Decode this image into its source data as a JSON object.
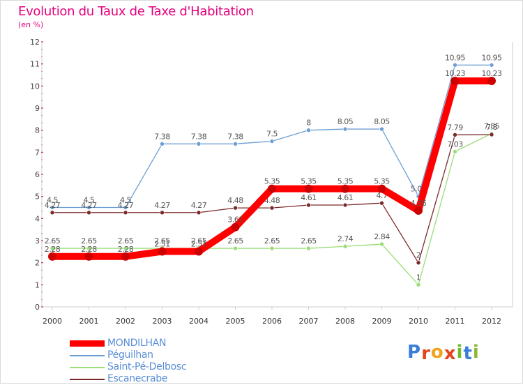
{
  "chart_data": {
    "type": "line",
    "title": "Evolution du Taux de Taxe d'Habitation",
    "subtitle": "(en %)",
    "xlabel": "",
    "ylabel": "",
    "ylim": [
      0,
      12
    ],
    "yticks": [
      0,
      1,
      2,
      3,
      4,
      5,
      6,
      7,
      8,
      9,
      10,
      11,
      12
    ],
    "categories": [
      "2000",
      "2001",
      "2002",
      "2003",
      "2004",
      "2005",
      "2006",
      "2007",
      "2008",
      "2009",
      "2010",
      "2011",
      "2012"
    ],
    "grid": false,
    "legend_position": "bottom-left",
    "series": [
      {
        "name": "MONDILHAN",
        "color": "#ff0000",
        "emphasis": true,
        "values": [
          2.28,
          2.28,
          2.28,
          2.51,
          2.51,
          3.61,
          5.35,
          5.35,
          5.35,
          5.35,
          4.36,
          10.23,
          10.23
        ],
        "labels": [
          "2.28",
          "2.28",
          "2.28",
          "2.51",
          "2.51",
          "3.61",
          "5.35",
          "5.35",
          "5.35",
          "5.35",
          "4.36",
          "10.23",
          "10.23"
        ]
      },
      {
        "name": "Péguilhan",
        "color": "#6d9fd4",
        "emphasis": false,
        "values": [
          4.5,
          4.5,
          4.5,
          7.38,
          7.38,
          7.38,
          7.5,
          8,
          8.05,
          8.05,
          5.01,
          10.95,
          10.95
        ],
        "labels": [
          "4.5",
          "4.5",
          "4.5",
          "7.38",
          "7.38",
          "7.38",
          "7.5",
          "8",
          "8.05",
          "8.05",
          "5.01",
          "10.95",
          "10.95"
        ]
      },
      {
        "name": "Saint-Pé-Delbosc",
        "color": "#99dd77",
        "emphasis": false,
        "values": [
          2.65,
          2.65,
          2.65,
          2.65,
          2.65,
          2.65,
          2.65,
          2.65,
          2.74,
          2.84,
          1,
          7.03,
          7.85
        ],
        "labels": [
          "2.65",
          "2.65",
          "2.65",
          "2.65",
          "2.65",
          "2.65",
          "2.65",
          "2.65",
          "2.74",
          "2.84",
          "1",
          "7.03",
          "7.85"
        ]
      },
      {
        "name": "Escanecrabe",
        "color": "#7a2a2a",
        "emphasis": false,
        "values": [
          4.27,
          4.27,
          4.27,
          4.27,
          4.27,
          4.48,
          4.48,
          4.61,
          4.61,
          4.7,
          2,
          7.79,
          7.8
        ],
        "labels": [
          "4.27",
          "4.27",
          "4.27",
          "4.27",
          "4.27",
          "4.48",
          "4.48",
          "4.61",
          "4.61",
          "4.7",
          "2",
          "7.79",
          "7.8"
        ]
      }
    ]
  },
  "logo": {
    "text": "Proxiti",
    "letters": [
      "P",
      "r",
      "o",
      "x",
      "i",
      "t",
      "i"
    ],
    "colors": [
      "#3a7dd8",
      "#e5431b",
      "#f0a31a",
      "#e5431b",
      "#6fbb2b",
      "#3a7dd8",
      "#8db83a"
    ]
  }
}
